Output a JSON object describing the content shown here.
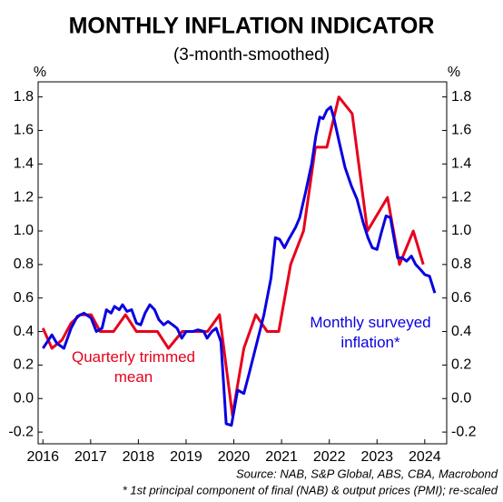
{
  "chart_data": {
    "type": "line",
    "title": "MONTHLY INFLATION INDICATOR",
    "subtitle": "(3-month-smoothed)",
    "ylabel": "%",
    "source": "Source: NAB, S&P Global, ABS, CBA, Macrobond",
    "note": "* 1st principal component of final (NAB) & output prices (PMI); re-scaled",
    "xlim": [
      2015.9,
      2024.46
    ],
    "xticks": [
      2016,
      2017,
      2018,
      2019,
      2020,
      2021,
      2022,
      2023,
      2024
    ],
    "ylim": [
      -0.27,
      1.89
    ],
    "yticks": [
      -0.2,
      {
        "value": 0,
        "label": "0.0"
      },
      0.2,
      0.4,
      0.6,
      0.8,
      {
        "value": 1,
        "label": "1.0"
      },
      1.2,
      1.4,
      1.6,
      1.8
    ],
    "grid": false,
    "series": [
      {
        "name": "Quarterly trimmed mean",
        "color": "#e8001c",
        "x": [
          2016.0,
          2016.19,
          2016.4,
          2016.59,
          2016.78,
          2017.01,
          2017.2,
          2017.48,
          2017.73,
          2017.96,
          2018.21,
          2018.4,
          2018.63,
          2018.92,
          2019.2,
          2019.45,
          2019.7,
          2019.97,
          2020.21,
          2020.46,
          2020.7,
          2020.94,
          2021.19,
          2021.46,
          2021.71,
          2021.95,
          2022.2,
          2022.48,
          2022.8,
          2023.22,
          2023.47,
          2023.76,
          2023.97
        ],
        "values": [
          0.42,
          0.3,
          0.35,
          0.45,
          0.5,
          0.5,
          0.4,
          0.4,
          0.5,
          0.4,
          0.4,
          0.4,
          0.3,
          0.4,
          0.4,
          0.4,
          0.5,
          -0.1,
          0.3,
          0.5,
          0.4,
          0.4,
          0.8,
          1.0,
          1.5,
          1.5,
          1.8,
          1.7,
          1.0,
          1.2,
          0.8,
          1.0,
          0.8
        ]
      },
      {
        "name": "Monthly surveyed inflation*",
        "color": "#0a00e0",
        "x": [
          2016.0,
          2016.19,
          2016.29,
          2016.44,
          2016.59,
          2016.72,
          2016.86,
          2017.01,
          2017.12,
          2017.24,
          2017.33,
          2017.43,
          2017.5,
          2017.6,
          2017.67,
          2017.76,
          2017.86,
          2017.96,
          2018.05,
          2018.14,
          2018.24,
          2018.34,
          2018.43,
          2018.53,
          2018.62,
          2018.72,
          2018.81,
          2018.91,
          2019.0,
          2019.14,
          2019.25,
          2019.37,
          2019.44,
          2019.54,
          2019.63,
          2019.73,
          2019.84,
          2019.95,
          2020.08,
          2020.21,
          2020.32,
          2020.48,
          2020.63,
          2020.78,
          2020.87,
          2020.96,
          2021.06,
          2021.15,
          2021.29,
          2021.38,
          2021.51,
          2021.63,
          2021.72,
          2021.8,
          2021.87,
          2021.95,
          2022.03,
          2022.1,
          2022.2,
          2022.33,
          2022.46,
          2022.58,
          2022.71,
          2022.81,
          2022.9,
          2023.0,
          2023.09,
          2023.19,
          2023.28,
          2023.36,
          2023.43,
          2023.53,
          2023.62,
          2023.72,
          2023.81,
          2023.91,
          2024.0,
          2024.1,
          2024.21
        ],
        "values": [
          0.3,
          0.38,
          0.33,
          0.3,
          0.42,
          0.49,
          0.51,
          0.48,
          0.4,
          0.42,
          0.53,
          0.51,
          0.55,
          0.53,
          0.56,
          0.52,
          0.53,
          0.45,
          0.44,
          0.51,
          0.56,
          0.53,
          0.47,
          0.44,
          0.46,
          0.44,
          0.42,
          0.36,
          0.4,
          0.4,
          0.41,
          0.4,
          0.36,
          0.4,
          0.42,
          0.34,
          -0.15,
          -0.16,
          0.05,
          0.03,
          0.15,
          0.33,
          0.5,
          0.72,
          0.96,
          0.95,
          0.9,
          0.95,
          1.02,
          1.08,
          1.24,
          1.4,
          1.57,
          1.68,
          1.67,
          1.72,
          1.74,
          1.67,
          1.54,
          1.38,
          1.27,
          1.19,
          1.05,
          0.96,
          0.9,
          0.89,
          0.99,
          1.09,
          1.08,
          0.95,
          0.84,
          0.84,
          0.82,
          0.85,
          0.8,
          0.77,
          0.74,
          0.73,
          0.63
        ]
      }
    ]
  }
}
